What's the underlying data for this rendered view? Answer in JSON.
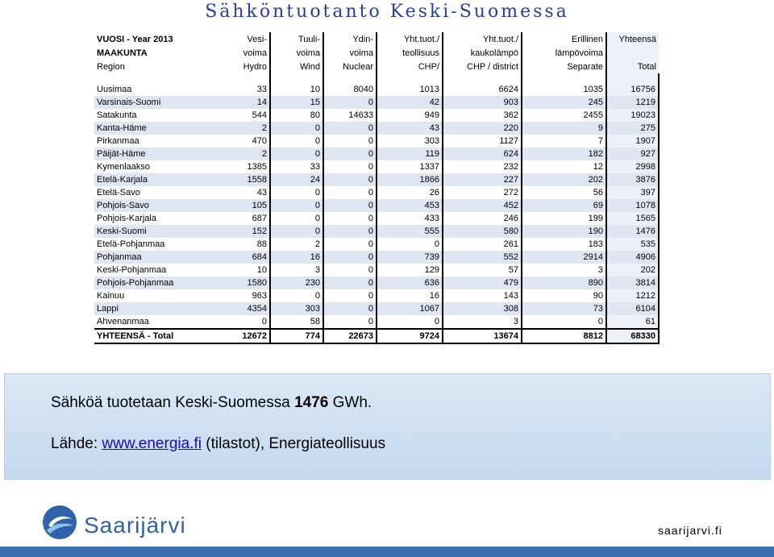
{
  "title": "Sähköntuotanto Keski-Suomessa",
  "table": {
    "headers": [
      [
        "VUOSI - Year 2013",
        "Vesi-",
        "Tuuli-",
        "Ydin-",
        "Yht.tuot./",
        "Yht.tuot./",
        "Erillinen",
        "Yhteensä"
      ],
      [
        "MAAKUNTA",
        "voima",
        "voima",
        "voima",
        "teollisuus",
        "kaukolämpö",
        "lämpövoima",
        ""
      ],
      [
        "Region",
        "Hydro",
        "Wind",
        "Nuclear",
        "CHP/",
        "CHP / district",
        "Separate",
        "Total"
      ]
    ],
    "rows": [
      [
        "Uusimaa",
        "33",
        "10",
        "8040",
        "1013",
        "6624",
        "1035",
        "16756"
      ],
      [
        "Varsinais-Suomi",
        "14",
        "15",
        "0",
        "42",
        "903",
        "245",
        "1219"
      ],
      [
        "Satakunta",
        "544",
        "80",
        "14633",
        "949",
        "362",
        "2455",
        "19023"
      ],
      [
        "Kanta-Häme",
        "2",
        "0",
        "0",
        "43",
        "220",
        "9",
        "275"
      ],
      [
        "Pirkanmaa",
        "470",
        "0",
        "0",
        "303",
        "1127",
        "7",
        "1907"
      ],
      [
        "Päijät-Häme",
        "2",
        "0",
        "0",
        "119",
        "624",
        "182",
        "927"
      ],
      [
        "Kymenlaakso",
        "1385",
        "33",
        "0",
        "1337",
        "232",
        "12",
        "2998"
      ],
      [
        "Etelä-Karjala",
        "1558",
        "24",
        "0",
        "1866",
        "227",
        "202",
        "3876"
      ],
      [
        "Etelä-Savo",
        "43",
        "0",
        "0",
        "26",
        "272",
        "56",
        "397"
      ],
      [
        "Pohjois-Savo",
        "105",
        "0",
        "0",
        "453",
        "452",
        "69",
        "1078"
      ],
      [
        "Pohjois-Karjala",
        "687",
        "0",
        "0",
        "433",
        "246",
        "199",
        "1565"
      ],
      [
        "Keski-Suomi",
        "152",
        "0",
        "0",
        "555",
        "580",
        "190",
        "1476"
      ],
      [
        "Etelä-Pohjanmaa",
        "88",
        "2",
        "0",
        "0",
        "261",
        "183",
        "535"
      ],
      [
        "Pohjanmaa",
        "684",
        "16",
        "0",
        "739",
        "552",
        "2914",
        "4906"
      ],
      [
        "Keski-Pohjanmaa",
        "10",
        "3",
        "0",
        "129",
        "57",
        "3",
        "202"
      ],
      [
        "Pohjois-Pohjanmaa",
        "1580",
        "230",
        "0",
        "636",
        "479",
        "890",
        "3814"
      ],
      [
        "Kainuu",
        "963",
        "0",
        "0",
        "16",
        "143",
        "90",
        "1212"
      ],
      [
        "Lappi",
        "4354",
        "303",
        "0",
        "1067",
        "308",
        "73",
        "6104"
      ],
      [
        "Ahvenanmaa",
        "0",
        "58",
        "0",
        "0",
        "3",
        "0",
        "61"
      ]
    ],
    "total": [
      "YHTEENSÄ - Total",
      "12672",
      "774",
      "22673",
      "9724",
      "13674",
      "8812",
      "68330"
    ]
  },
  "banner": {
    "line1_prefix": "Sähköä tuotetaan Keski-Suomessa ",
    "line1_value": "1476",
    "line1_suffix": " GWh.",
    "line2_prefix": "Lähde: ",
    "line2_link": "www.energia.fi",
    "line2_suffix": " (tilastot), Energiateollisuus"
  },
  "logo_text": "Saarijärvi",
  "site_url": "saarijarvi.fi",
  "colors": {
    "title": "#2b3f99",
    "row_alt": "#dfe6f2",
    "banner": "#c4d9f0",
    "footer_bar": "#3b6fb2",
    "logo": "#2f62a8"
  }
}
